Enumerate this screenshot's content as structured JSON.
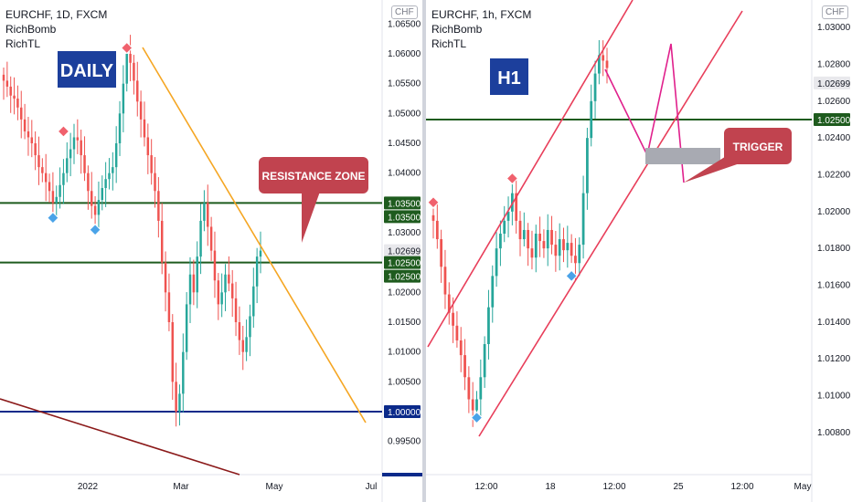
{
  "chart_data": [
    {
      "type": "candlestick",
      "title": "EURCHF, 1D, FXCM",
      "indicators": [
        "RichBomb",
        "RichTL"
      ],
      "currency": "CHF",
      "timeframe_badge": "DAILY",
      "y_ticks": [
        "1.06500",
        "1.06000",
        "1.05500",
        "1.05000",
        "1.04500",
        "1.04000",
        "1.03500",
        "1.03000",
        "1.02500",
        "1.02000",
        "1.01500",
        "1.01000",
        "1.00500",
        "1.00000",
        "0.99500"
      ],
      "x_ticks": [
        "2022",
        "Mar",
        "May",
        "Jul"
      ],
      "ylim": [
        0.9925,
        1.0675
      ],
      "price_labels": [
        {
          "value": 1.035,
          "text": "1.03500",
          "color": "#1e5b1e"
        },
        {
          "value": 1.035,
          "text": "1.03500",
          "color": "#1e5b1e"
        },
        {
          "value": 1.02699,
          "text": "1.02699",
          "color": "#e8e8ec"
        },
        {
          "value": 1.025,
          "text": "1.02500",
          "color": "#1e5b1e"
        },
        {
          "value": 1.025,
          "text": "1.02500",
          "color": "#1e5b1e"
        },
        {
          "value": 1.0,
          "text": "1.00000",
          "color": "#0b2a8a"
        }
      ],
      "horizontal_lines": [
        {
          "value": 1.035,
          "color": "#1e5b1e"
        },
        {
          "value": 1.025,
          "color": "#1e5b1e"
        },
        {
          "value": 1.0,
          "color": "#0b2a8a"
        }
      ],
      "annotation": "RESISTANCE ZONE",
      "series_close": [
        1.0555,
        1.0545,
        1.053,
        1.0525,
        1.051,
        1.049,
        1.047,
        1.046,
        1.045,
        1.043,
        1.041,
        1.04,
        1.0385,
        1.037,
        1.035,
        1.036,
        1.038,
        1.04,
        1.0425,
        1.044,
        1.046,
        1.0455,
        1.043,
        1.04,
        1.037,
        1.0345,
        1.033,
        1.0355,
        1.0375,
        1.039,
        1.04,
        1.041,
        1.045,
        1.05,
        1.055,
        1.06,
        1.0585,
        1.0555,
        1.052,
        1.049,
        1.046,
        1.043,
        1.04,
        1.037,
        1.032,
        1.025,
        1.02,
        1.015,
        1.005,
        1.0,
        1.003,
        1.01,
        1.018,
        1.023,
        1.02,
        1.026,
        1.032,
        1.035,
        1.031,
        1.027,
        1.022,
        1.018,
        1.02,
        1.023,
        1.0215,
        1.019,
        1.015,
        1.012,
        1.01,
        1.0125,
        1.016,
        1.021,
        1.026,
        1.027
      ],
      "markers": [
        {
          "type": "high",
          "index": 17,
          "value": 1.047
        },
        {
          "type": "low",
          "index": 14,
          "value": 1.0325
        },
        {
          "type": "low",
          "index": 26,
          "value": 1.0305
        },
        {
          "type": "high",
          "index": 35,
          "value": 1.061
        }
      ]
    },
    {
      "type": "candlestick",
      "title": "EURCHF, 1h, FXCM",
      "indicators": [
        "RichBomb",
        "RichTL"
      ],
      "currency": "CHF",
      "timeframe_badge": "H1",
      "y_ticks": [
        "1.03000",
        "1.02800",
        "1.02600",
        "1.02400",
        "1.02200",
        "1.02000",
        "1.01800",
        "1.01600",
        "1.01400",
        "1.01200",
        "1.01000",
        "1.00800"
      ],
      "x_ticks": [
        "12:00",
        "18",
        "12:00",
        "25",
        "12:00",
        "May"
      ],
      "ylim": [
        1.0067,
        1.031
      ],
      "price_labels": [
        {
          "value": 1.02699,
          "text": "1.02699",
          "color": "#e8e8ec"
        },
        {
          "value": 1.025,
          "text": "1.02500",
          "color": "#1e5b1e"
        }
      ],
      "horizontal_lines": [
        {
          "value": 1.025,
          "color": "#1e5b1e"
        }
      ],
      "annotation": "TRIGGER",
      "series_close": [
        1.0195,
        1.0185,
        1.017,
        1.0155,
        1.0145,
        1.0138,
        1.013,
        1.0122,
        1.011,
        1.0098,
        1.0092,
        1.0098,
        1.011,
        1.0128,
        1.0148,
        1.0165,
        1.018,
        1.0188,
        1.0195,
        1.02,
        1.021,
        1.0195,
        1.0185,
        1.019,
        1.018,
        1.0175,
        1.0188,
        1.0184,
        1.018,
        1.019,
        1.0182,
        1.0176,
        1.0185,
        1.0179,
        1.0183,
        1.0176,
        1.0172,
        1.0182,
        1.021,
        1.024,
        1.026,
        1.0275,
        1.0285,
        1.0282,
        1.0278
      ],
      "markers": [
        {
          "type": "high",
          "index": 0,
          "value": 1.0205
        },
        {
          "type": "high",
          "index": 20,
          "value": 1.0218
        },
        {
          "type": "low",
          "index": 35,
          "value": 1.0165
        },
        {
          "type": "low",
          "index": 11,
          "value": 1.0088
        }
      ]
    }
  ]
}
